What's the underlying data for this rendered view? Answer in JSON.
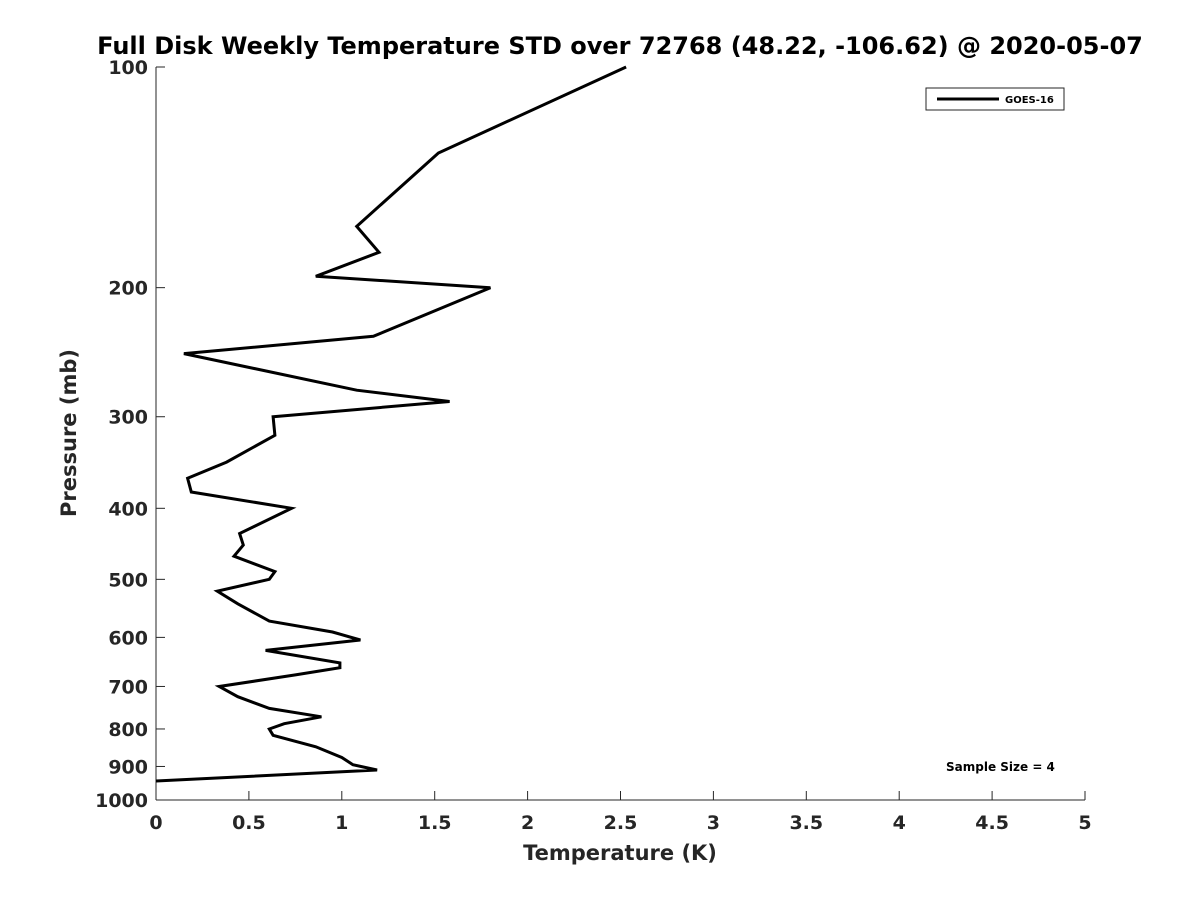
{
  "chart_data": {
    "type": "line",
    "title": "Full Disk Weekly Temperature STD over 72768 (48.22, -106.62) @ 2020-05-07",
    "xlabel": "Temperature (K)",
    "ylabel": "Pressure (mb)",
    "xlim": [
      0,
      5
    ],
    "ylim": [
      100,
      1000
    ],
    "yscale": "log",
    "yaxis_reversed": true,
    "xticks": [
      0,
      0.5,
      1,
      1.5,
      2,
      2.5,
      3,
      3.5,
      4,
      4.5,
      5
    ],
    "xtick_labels": [
      "0",
      "0.5",
      "1",
      "1.5",
      "2",
      "2.5",
      "3",
      "3.5",
      "4",
      "4.5",
      "5"
    ],
    "yticks": [
      100,
      200,
      300,
      400,
      500,
      600,
      700,
      800,
      900,
      1000
    ],
    "ytick_labels": [
      "100",
      "200",
      "300",
      "400",
      "500",
      "600",
      "700",
      "800",
      "900",
      "1000"
    ],
    "grid": false,
    "legend_position": "top-right",
    "annotation": "Sample Size = 4",
    "series": [
      {
        "name": "GOES-16",
        "color": "#000000",
        "x": [
          2.53,
          1.52,
          1.08,
          1.2,
          0.86,
          1.8,
          1.17,
          0.15,
          1.08,
          1.58,
          0.63,
          0.64,
          0.38,
          0.17,
          0.19,
          0.73,
          0.45,
          0.47,
          0.42,
          0.64,
          0.61,
          0.33,
          0.44,
          0.61,
          0.95,
          1.1,
          0.59,
          0.99,
          0.99,
          0.75,
          0.34,
          0.44,
          0.61,
          0.89,
          0.69,
          0.61,
          0.63,
          0.86,
          1.0,
          1.06,
          1.19,
          0.0
        ],
        "y": [
          100,
          131,
          165,
          179,
          193,
          200,
          233,
          246,
          276,
          286,
          300,
          318,
          346,
          364,
          380,
          400,
          433,
          449,
          465,
          488,
          500,
          519,
          540,
          570,
          590,
          605,
          625,
          650,
          660,
          675,
          700,
          723,
          750,
          770,
          787,
          800,
          816,
          846,
          875,
          895,
          910,
          942
        ]
      }
    ]
  }
}
